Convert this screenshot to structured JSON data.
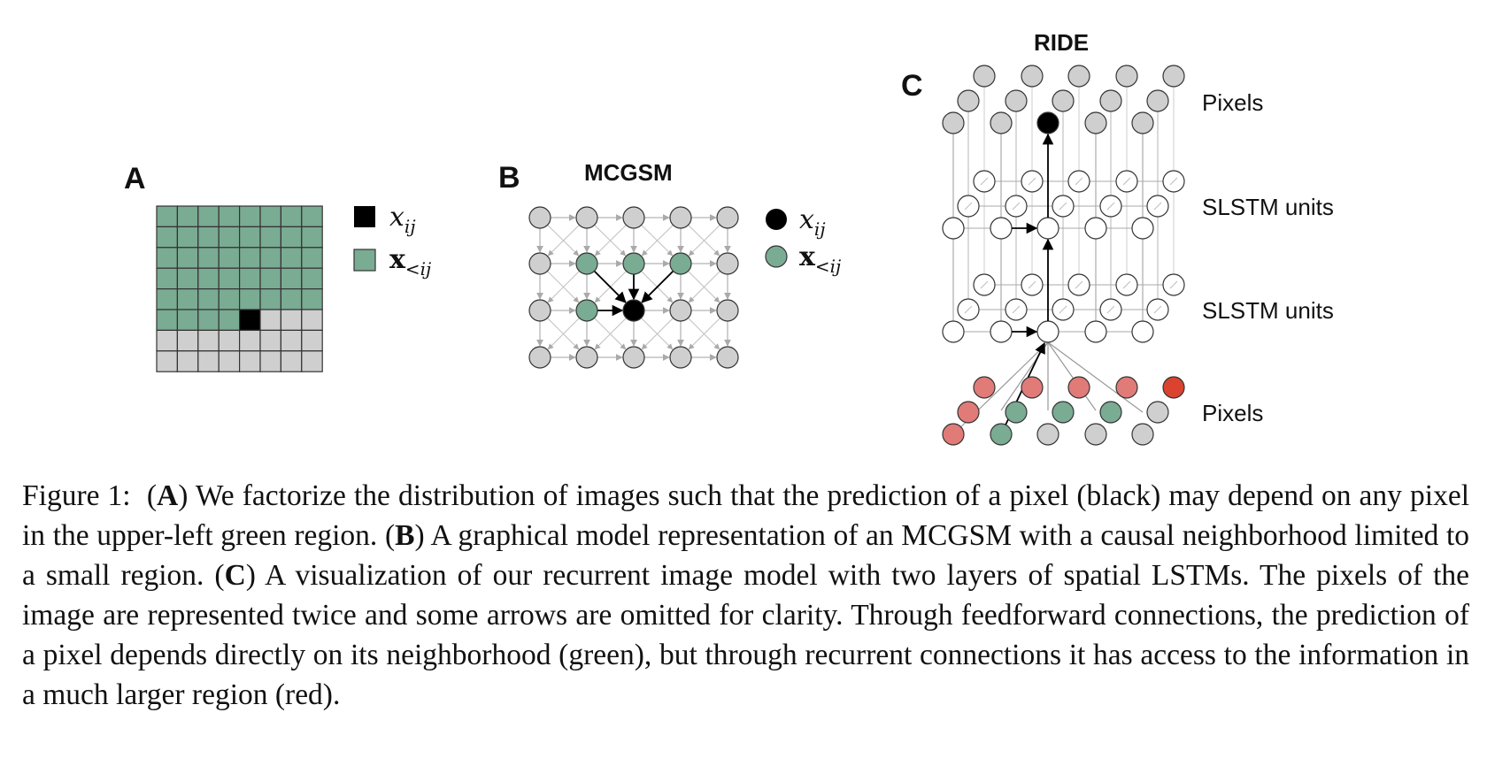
{
  "figure": {
    "panel_a": {
      "label": "A",
      "legend": {
        "x_label": "x",
        "x_sub": "ij",
        "xlt_label": "x",
        "xlt_sub": "<ij"
      },
      "grid": {
        "rows": 8,
        "cols": 8,
        "green_full_rows": 5,
        "current_row": 5,
        "current_col": 4
      }
    },
    "panel_b": {
      "label": "B",
      "title": "MCGSM",
      "legend": {
        "x_label": "x",
        "x_sub": "ij",
        "xlt_label": "x",
        "xlt_sub": "<ij"
      }
    },
    "panel_c": {
      "label": "C",
      "title": "RIDE",
      "layer_labels": [
        "Pixels",
        "SLSTM units",
        "SLSTM units",
        "Pixels"
      ]
    },
    "colors": {
      "green": "#7aab93",
      "gray": "#cfcfcf",
      "black": "#000000",
      "red": "#e07b77",
      "bright_red": "#d9432f",
      "edge": "#9a9a9a"
    }
  },
  "caption": {
    "fig_label": "Figure 1:",
    "a_marker": "A",
    "a_text": "We factorize the distribution of images such that the prediction of a pixel (black) may depend on any pixel in the upper-left green region.",
    "b_marker": "B",
    "b_text": "A graphical model representation of an MCGSM with a causal neighborhood limited to a small region.",
    "c_marker": "C",
    "c_text": "A visualization of our recurrent image model with two layers of spatial LSTMs. The pixels of the image are represented twice and some arrows are omitted for clarity. Through feedforward connections, the prediction of a pixel depends directly on its neighborhood (green), but through recurrent connections it has access to the information in a much larger region (red)."
  }
}
